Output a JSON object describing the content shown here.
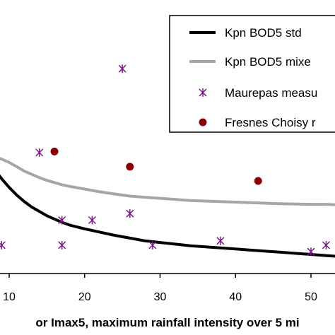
{
  "chart_data": {
    "type": "scatter",
    "xlabel": "or Imax5, maximum rainfall intensity over 5 mi",
    "ylabel": "",
    "xlim": [
      7.5,
      54
    ],
    "ylim": [
      0,
      24
    ],
    "x_ticks": [
      10,
      20,
      30,
      40,
      50
    ],
    "grid": false,
    "legend_position": "top-right",
    "series": [
      {
        "name": "Kpn BOD5 std",
        "kind": "line",
        "color": "#000000",
        "x": [
          7.5,
          8,
          9,
          10,
          11,
          12,
          13,
          14,
          15,
          16,
          17,
          18,
          20,
          22,
          24,
          26,
          28,
          30,
          32,
          34,
          36,
          38,
          40,
          42,
          44,
          46,
          48,
          50,
          52,
          54
        ],
        "y": [
          10.1,
          9.6,
          8.7,
          7.9,
          7.2,
          6.6,
          6.1,
          5.7,
          5.3,
          5.0,
          4.7,
          4.45,
          4.1,
          3.8,
          3.5,
          3.25,
          3.0,
          2.85,
          2.7,
          2.55,
          2.45,
          2.35,
          2.25,
          2.15,
          2.05,
          1.95,
          1.85,
          1.75,
          1.65,
          1.55
        ]
      },
      {
        "name": "Kpn BOD5 mixe",
        "kind": "line",
        "color": "#a6a6a6",
        "x": [
          7.5,
          9,
          10,
          11,
          12,
          13,
          14,
          15,
          16,
          17,
          18,
          20,
          22,
          24,
          26,
          28,
          30,
          34,
          38,
          42,
          46,
          50,
          52,
          54
        ],
        "y": [
          10.9,
          10.5,
          10.2,
          9.8,
          9.4,
          9.1,
          8.8,
          8.55,
          8.35,
          8.15,
          8.0,
          7.75,
          7.5,
          7.3,
          7.1,
          7.0,
          6.9,
          6.7,
          6.6,
          6.5,
          6.4,
          6.35,
          6.35,
          6.3
        ]
      },
      {
        "name": "Maurepas measu",
        "kind": "marker",
        "marker": "asterisk",
        "color": "#7a1a86",
        "x": [
          9,
          14,
          17,
          17,
          21,
          25,
          26,
          29,
          38,
          50,
          52
        ],
        "y": [
          2.6,
          11.1,
          4.9,
          2.6,
          4.9,
          18.8,
          5.5,
          2.6,
          3.0,
          2.0,
          2.6
        ]
      },
      {
        "name": "Fresnes Choisy r",
        "kind": "marker",
        "marker": "circle",
        "color": "#8b0000",
        "x": [
          16,
          26,
          43
        ],
        "y": [
          11.2,
          9.8,
          8.5
        ]
      }
    ]
  }
}
